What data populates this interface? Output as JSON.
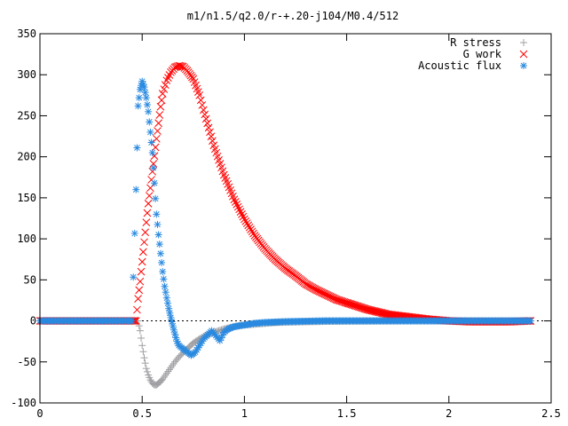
{
  "chart_data": {
    "type": "scatter",
    "title": "m1/n1.5/q2.0/r-+.20-j104/M0.4/512",
    "xlabel": "",
    "ylabel": "",
    "xlim": [
      0,
      2.5
    ],
    "ylim": [
      -100,
      350
    ],
    "xticks": [
      0,
      0.5,
      1,
      1.5,
      2,
      2.5
    ],
    "xtick_labels": [
      "0",
      "0.5",
      "1",
      "1.5",
      "2",
      "2.5"
    ],
    "yticks": [
      -100,
      -50,
      0,
      50,
      100,
      150,
      200,
      250,
      300,
      350
    ],
    "ytick_labels": [
      "-100",
      "-50",
      "0",
      "50",
      "100",
      "150",
      "200",
      "250",
      "300",
      "350"
    ],
    "grid": false,
    "legend_position": "top-right",
    "series": [
      {
        "name": "R stress",
        "marker": "plus",
        "color": "#a0a0a4",
        "x": [
          0.0,
          0.1,
          0.2,
          0.3,
          0.4,
          0.45,
          0.48,
          0.49,
          0.5,
          0.51,
          0.52,
          0.53,
          0.54,
          0.55,
          0.56,
          0.57,
          0.58,
          0.59,
          0.6,
          0.62,
          0.64,
          0.66,
          0.68,
          0.7,
          0.72,
          0.75,
          0.78,
          0.8,
          0.85,
          0.9,
          0.95,
          1.0,
          1.05,
          1.1,
          1.15,
          1.2,
          1.3,
          1.4,
          1.5,
          1.6,
          1.7,
          1.8,
          1.9,
          2.0,
          2.1,
          2.2,
          2.3,
          2.4
        ],
        "y": [
          0,
          0,
          0,
          0,
          0,
          0,
          0,
          -12,
          -30,
          -45,
          -58,
          -66,
          -72,
          -76,
          -78,
          -78,
          -76,
          -74,
          -71,
          -64,
          -57,
          -50,
          -44,
          -39,
          -34,
          -27,
          -22,
          -19,
          -14,
          -10,
          -7,
          -5,
          -4,
          -3,
          -2,
          -1.5,
          -1,
          -0.5,
          -0.3,
          -0.2,
          -0.1,
          0,
          0,
          0,
          0,
          0,
          0,
          0
        ]
      },
      {
        "name": "G work",
        "marker": "cross",
        "color": "#ff0000",
        "x": [
          0.0,
          0.1,
          0.2,
          0.3,
          0.4,
          0.47,
          0.48,
          0.49,
          0.5,
          0.51,
          0.52,
          0.53,
          0.54,
          0.55,
          0.56,
          0.57,
          0.58,
          0.59,
          0.6,
          0.62,
          0.64,
          0.66,
          0.68,
          0.7,
          0.72,
          0.75,
          0.78,
          0.8,
          0.85,
          0.9,
          0.95,
          1.0,
          1.05,
          1.1,
          1.15,
          1.2,
          1.25,
          1.3,
          1.35,
          1.4,
          1.45,
          1.5,
          1.6,
          1.7,
          1.8,
          1.9,
          2.0,
          2.1,
          2.2,
          2.3,
          2.4
        ],
        "y": [
          0,
          0,
          0,
          0,
          0,
          0,
          27,
          48,
          72,
          96,
          120,
          143,
          162,
          182,
          201,
          222,
          241,
          261,
          277,
          293,
          303,
          309,
          311,
          310,
          305,
          295,
          275,
          257,
          214,
          178,
          148,
          124,
          104,
          88,
          75,
          64,
          55,
          45,
          38,
          32,
          26,
          22,
          14,
          8,
          5,
          2,
          0,
          -1,
          -1,
          -1,
          0
        ]
      },
      {
        "name": "Acoustic flux",
        "marker": "star",
        "color": "#2a8ae0",
        "x": [
          0.0,
          0.1,
          0.2,
          0.3,
          0.4,
          0.45,
          0.47,
          0.48,
          0.49,
          0.5,
          0.51,
          0.52,
          0.53,
          0.54,
          0.55,
          0.56,
          0.57,
          0.58,
          0.59,
          0.6,
          0.61,
          0.62,
          0.63,
          0.64,
          0.65,
          0.66,
          0.67,
          0.68,
          0.7,
          0.72,
          0.74,
          0.76,
          0.78,
          0.8,
          0.82,
          0.84,
          0.86,
          0.88,
          0.9,
          0.92,
          0.95,
          1.0,
          1.05,
          1.1,
          1.2,
          1.3,
          1.4,
          1.5,
          1.6,
          1.7,
          1.8,
          1.9,
          2.0,
          2.1,
          2.2,
          2.3,
          2.4
        ],
        "y": [
          0,
          0,
          0,
          0,
          0,
          0,
          160,
          262,
          282,
          292,
          285,
          272,
          255,
          230,
          205,
          168,
          130,
          105,
          82,
          60,
          42,
          28,
          15,
          4,
          -6,
          -16,
          -25,
          -30,
          -34,
          -38,
          -42,
          -38,
          -30,
          -22,
          -17,
          -12,
          -18,
          -24,
          -14,
          -10,
          -7,
          -5,
          -3,
          -2,
          -1,
          -0.5,
          0,
          0,
          0,
          0,
          0,
          0,
          0,
          0,
          0,
          0,
          0
        ]
      }
    ]
  }
}
